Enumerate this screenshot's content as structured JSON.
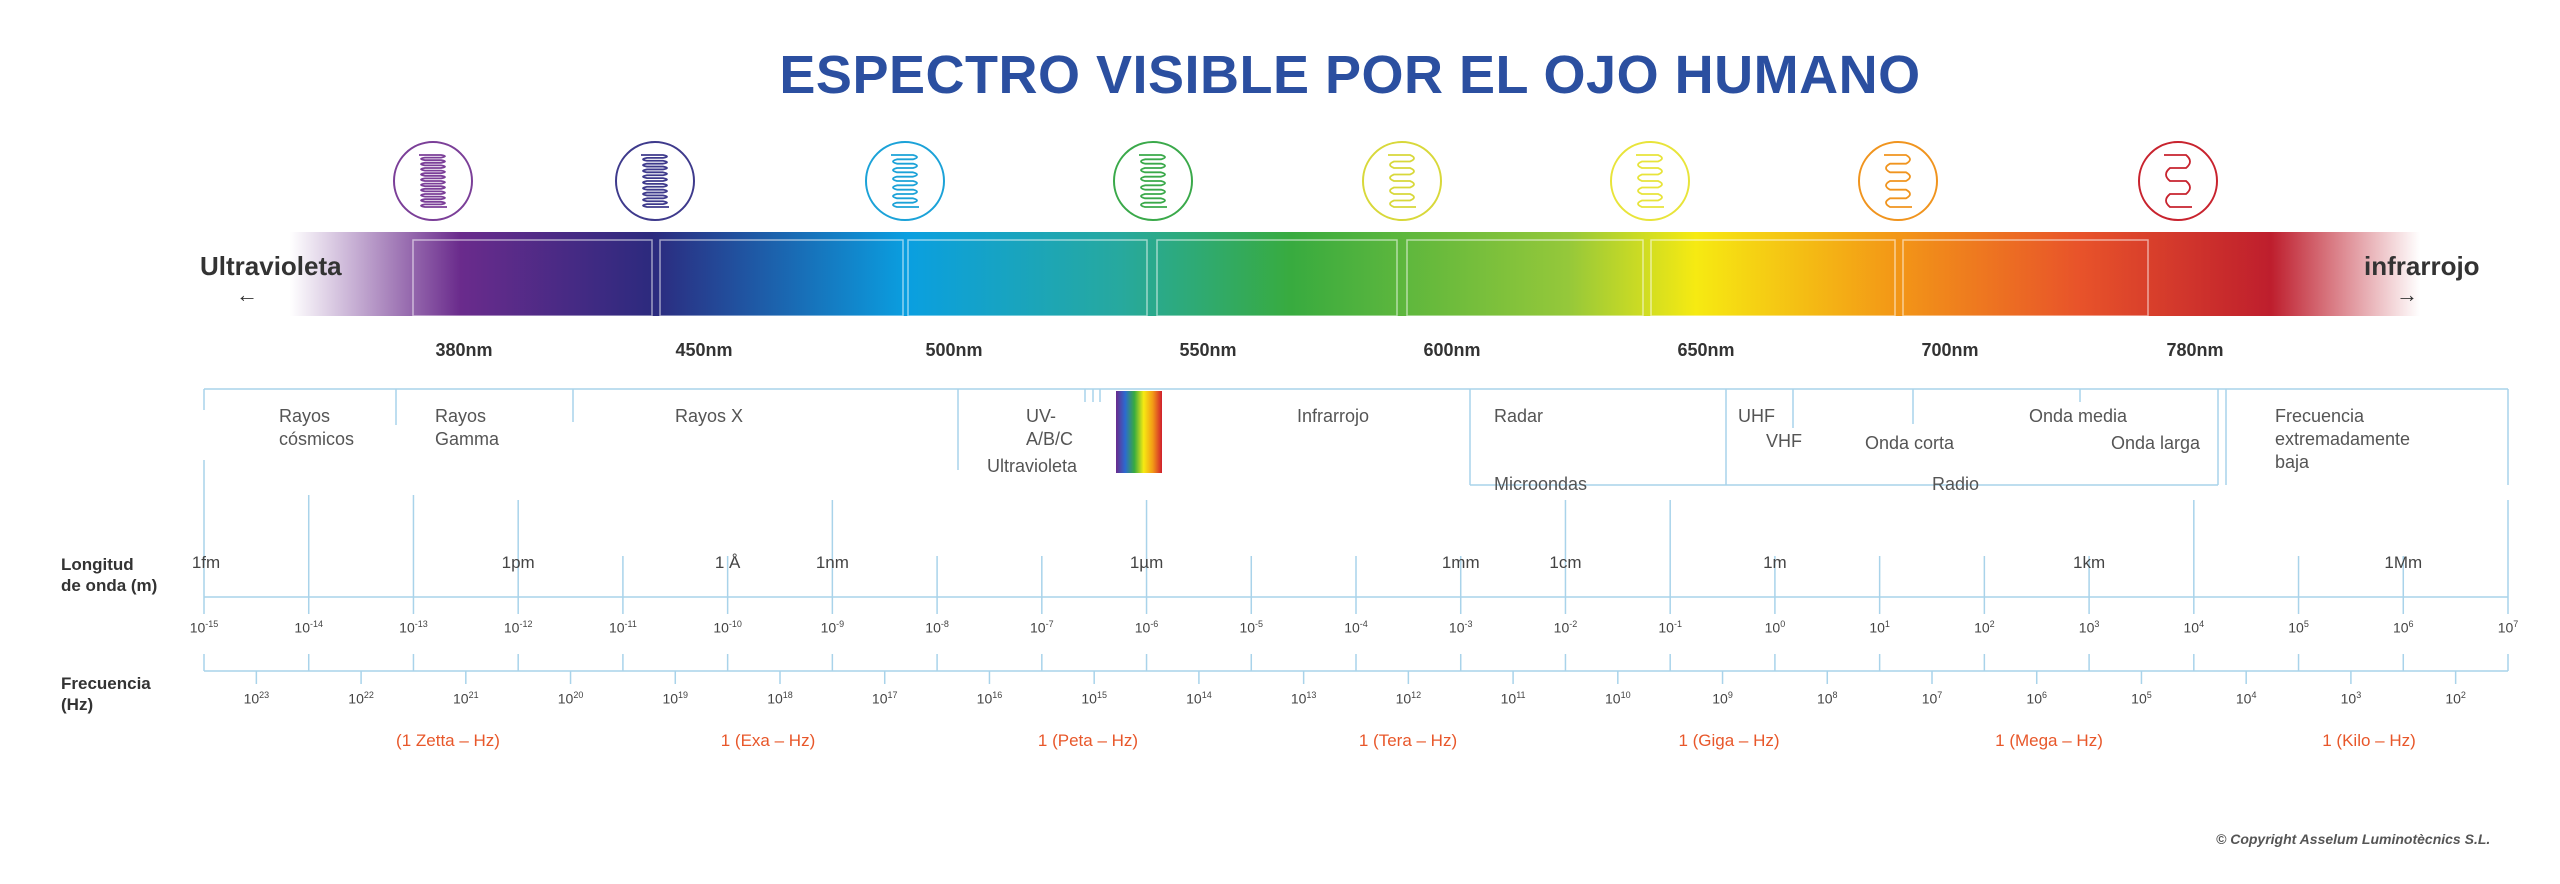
{
  "title": "ESPECTRO VISIBLE POR EL OJO HUMANO",
  "spectrum": {
    "left_label": "Ultravioleta",
    "right_label": "infrarrojo",
    "left_arrow": "←",
    "right_arrow": "→",
    "gradient_colors": [
      "#ffffff",
      "#6a2b8c",
      "#2c2a7e",
      "#0a9fe0",
      "#27a99e",
      "#38ab3f",
      "#95c83a",
      "#f6ea12",
      "#f39a16",
      "#e8532a",
      "#be1e2d",
      "#ffffff"
    ],
    "icon_colors": [
      "#7b3f98",
      "#3e3a8c",
      "#1ba2d8",
      "#3aa94a",
      "#d8d83a",
      "#e8e43a",
      "#f0941e",
      "#c8232e"
    ],
    "wavelength_labels": [
      "380nm",
      "450nm",
      "500nm",
      "550nm",
      "600nm",
      "650nm",
      "700nm",
      "780nm"
    ]
  },
  "bands": {
    "rayos_cosmicos": "Rayos\ncósmicos",
    "rayos_gamma": "Rayos\nGamma",
    "rayos_x": "Rayos X",
    "uv": "UV-\nA/B/C",
    "ultravioleta": "Ultravioleta",
    "infrarrojo": "Infrarrojo",
    "radar": "Radar",
    "microondas": "Microondas",
    "uhf": "UHF",
    "vhf": "VHF",
    "onda_corta": "Onda corta",
    "onda_media": "Onda media",
    "onda_larga": "Onda larga",
    "radio": "Radio",
    "frecuencia_baja": "Frecuencia\nextremadamente\nbaja"
  },
  "wavelength_row": {
    "title": "Longitud\nde onda (m)",
    "unit_labels": [
      "1fm",
      "1pm",
      "1 Å",
      "1nm",
      "1µm",
      "1mm",
      "1cm",
      "1m",
      "1km",
      "1Mm"
    ],
    "exponents": [
      "-15",
      "-14",
      "-13",
      "-12",
      "-11",
      "-10",
      "-9",
      "-8",
      "-7",
      "-6",
      "-5",
      "-4",
      "-3",
      "-2",
      "-1",
      "0",
      "1",
      "2",
      "3",
      "4",
      "5",
      "6",
      "7"
    ],
    "base": "10"
  },
  "frequency_row": {
    "title": "Frecuencia\n(Hz)",
    "exponents": [
      "23",
      "22",
      "21",
      "20",
      "19",
      "18",
      "17",
      "16",
      "15",
      "14",
      "13",
      "12",
      "11",
      "10",
      "9",
      "8",
      "7",
      "6",
      "5",
      "4",
      "3",
      "2"
    ],
    "base": "10",
    "si_labels": [
      "(1 Zetta – Hz)",
      "1 (Exa – Hz)",
      "1 (Peta – Hz)",
      "1 (Tera – Hz)",
      "1 (Giga – Hz)",
      "1 (Mega – Hz)",
      "1 (Kilo – Hz)"
    ]
  },
  "copyright": "© Copyright Asselum Luminotècnics S.L.",
  "colors": {
    "title": "#2b4fa0",
    "axis_line": "#a9d3ea",
    "si_label": "#e8572a"
  }
}
